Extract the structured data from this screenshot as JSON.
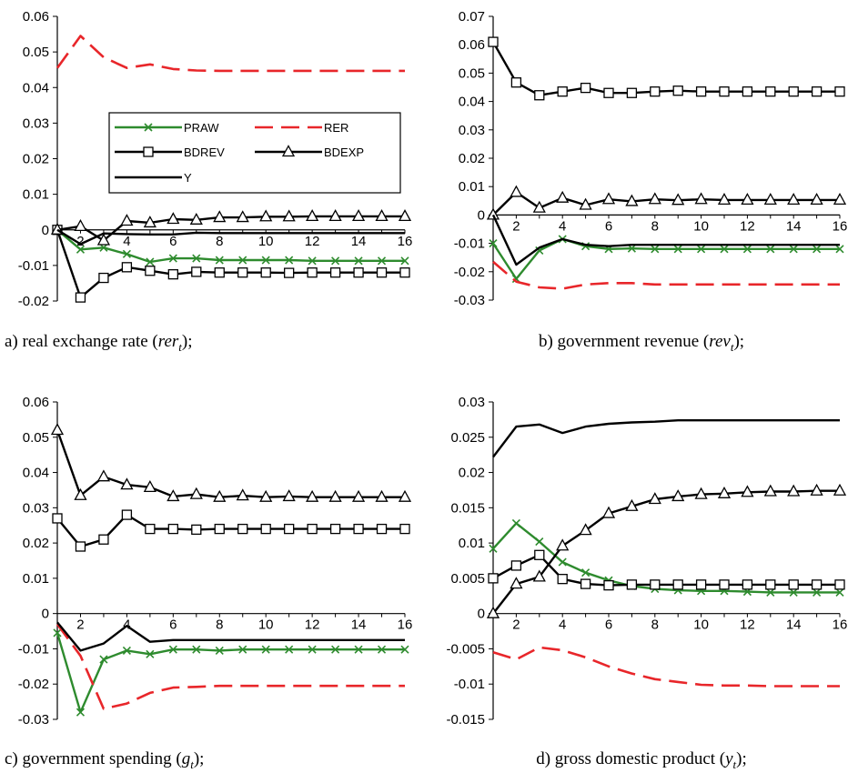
{
  "colors": {
    "PRAW": "#2e8b2e",
    "RER": "#e8262a",
    "BDREV": "#000000",
    "BDEXP": "#000000",
    "Y": "#000000"
  },
  "legend": {
    "items": [
      "PRAW",
      "RER",
      "BDREV",
      "BDEXP",
      "Y"
    ],
    "placement": "inside panel a, center-right"
  },
  "chart_data": [
    {
      "type": "line",
      "caption": {
        "pre": "a) real exchange rate (",
        "var": "rer",
        "sub": "t",
        "post": ");"
      },
      "x": [
        1,
        2,
        3,
        4,
        5,
        6,
        7,
        8,
        9,
        10,
        11,
        12,
        13,
        14,
        15,
        16
      ],
      "xticks": [
        2,
        4,
        6,
        8,
        10,
        12,
        14,
        16
      ],
      "ylim": [
        -0.02,
        0.06
      ],
      "yticks": [
        "-0.02",
        "-0.01",
        "0",
        "0.01",
        "0.02",
        "0.03",
        "0.04",
        "0.05",
        "0.06"
      ],
      "series": [
        {
          "name": "PRAW",
          "values": [
            0,
            -0.0055,
            -0.005,
            -0.0068,
            -0.009,
            -0.008,
            -0.008,
            -0.0085,
            -0.0085,
            -0.0085,
            -0.0085,
            -0.0087,
            -0.0087,
            -0.0087,
            -0.0087,
            -0.0087
          ]
        },
        {
          "name": "RER",
          "values": [
            0.0455,
            0.0545,
            0.0485,
            0.0455,
            0.0465,
            0.0452,
            0.0448,
            0.0447,
            0.0447,
            0.0447,
            0.0447,
            0.0447,
            0.0447,
            0.0447,
            0.0447,
            0.0447
          ]
        },
        {
          "name": "BDREV",
          "values": [
            0,
            -0.019,
            -0.0135,
            -0.0105,
            -0.0115,
            -0.0125,
            -0.0118,
            -0.012,
            -0.012,
            -0.012,
            -0.0121,
            -0.012,
            -0.012,
            -0.012,
            -0.012,
            -0.012
          ]
        },
        {
          "name": "BDEXP",
          "values": [
            0,
            0.001,
            -0.003,
            0.0025,
            0.002,
            0.003,
            0.0028,
            0.0035,
            0.0035,
            0.0037,
            0.0037,
            0.0038,
            0.0038,
            0.0038,
            0.0038,
            0.0038
          ]
        },
        {
          "name": "Y",
          "values": [
            0,
            -0.004,
            -0.001,
            -0.0012,
            -0.0013,
            -0.0013,
            -0.0008,
            -0.0009,
            -0.0009,
            -0.0009,
            -0.0009,
            -0.0009,
            -0.0009,
            -0.0009,
            -0.0009,
            -0.0009
          ]
        }
      ]
    },
    {
      "type": "line",
      "caption": {
        "pre": "b) government revenue (",
        "var": "rev",
        "sub": "t",
        "post": ");"
      },
      "x": [
        1,
        2,
        3,
        4,
        5,
        6,
        7,
        8,
        9,
        10,
        11,
        12,
        13,
        14,
        15,
        16
      ],
      "xticks": [
        2,
        4,
        6,
        8,
        10,
        12,
        14,
        16
      ],
      "ylim": [
        -0.03,
        0.07
      ],
      "yticks": [
        "-0.03",
        "-0.02",
        "-0.01",
        "0",
        "0.01",
        "0.02",
        "0.03",
        "0.04",
        "0.05",
        "0.06",
        "0.07"
      ],
      "series": [
        {
          "name": "PRAW",
          "values": [
            -0.01,
            -0.0225,
            -0.0125,
            -0.0085,
            -0.011,
            -0.012,
            -0.0118,
            -0.012,
            -0.012,
            -0.012,
            -0.012,
            -0.012,
            -0.012,
            -0.012,
            -0.012,
            -0.012
          ]
        },
        {
          "name": "RER",
          "values": [
            -0.0165,
            -0.0235,
            -0.0255,
            -0.026,
            -0.0245,
            -0.024,
            -0.024,
            -0.0245,
            -0.0245,
            -0.0245,
            -0.0245,
            -0.0245,
            -0.0245,
            -0.0245,
            -0.0245,
            -0.0245
          ]
        },
        {
          "name": "BDREV",
          "values": [
            0.061,
            0.0467,
            0.0422,
            0.0435,
            0.0448,
            0.043,
            0.043,
            0.0435,
            0.0438,
            0.0435,
            0.0435,
            0.0435,
            0.0435,
            0.0435,
            0.0435,
            0.0435
          ]
        },
        {
          "name": "BDEXP",
          "values": [
            0,
            0.008,
            0.0025,
            0.006,
            0.0035,
            0.0055,
            0.0048,
            0.0055,
            0.0052,
            0.0055,
            0.0053,
            0.0053,
            0.0053,
            0.0053,
            0.0053,
            0.0053
          ]
        },
        {
          "name": "Y",
          "values": [
            0,
            -0.0175,
            -0.0115,
            -0.0085,
            -0.0105,
            -0.011,
            -0.0105,
            -0.0105,
            -0.0105,
            -0.0105,
            -0.0105,
            -0.0105,
            -0.0105,
            -0.0105,
            -0.0105,
            -0.0105
          ]
        }
      ]
    },
    {
      "type": "line",
      "caption": {
        "pre": "c) government spending (",
        "var": "g",
        "sub": "t",
        "post": ");"
      },
      "x": [
        1,
        2,
        3,
        4,
        5,
        6,
        7,
        8,
        9,
        10,
        11,
        12,
        13,
        14,
        15,
        16
      ],
      "xticks": [
        2,
        4,
        6,
        8,
        10,
        12,
        14,
        16
      ],
      "ylim": [
        -0.03,
        0.06
      ],
      "yticks": [
        "-0.03",
        "-0.02",
        "-0.01",
        "0",
        "0.01",
        "0.02",
        "0.03",
        "0.04",
        "0.05",
        "0.06"
      ],
      "series": [
        {
          "name": "PRAW",
          "values": [
            -0.0055,
            -0.028,
            -0.013,
            -0.0105,
            -0.0115,
            -0.0102,
            -0.0102,
            -0.0105,
            -0.0102,
            -0.0102,
            -0.0102,
            -0.0102,
            -0.0102,
            -0.0102,
            -0.0102,
            -0.0102
          ]
        },
        {
          "name": "RER",
          "values": [
            -0.003,
            -0.012,
            -0.027,
            -0.0255,
            -0.0225,
            -0.021,
            -0.0208,
            -0.0205,
            -0.0205,
            -0.0205,
            -0.0205,
            -0.0205,
            -0.0205,
            -0.0205,
            -0.0205,
            -0.0205
          ]
        },
        {
          "name": "BDREV",
          "values": [
            0.027,
            0.019,
            0.021,
            0.028,
            0.024,
            0.024,
            0.0238,
            0.024,
            0.024,
            0.024,
            0.024,
            0.024,
            0.024,
            0.024,
            0.024,
            0.024
          ]
        },
        {
          "name": "BDEXP",
          "values": [
            0.052,
            0.0335,
            0.0388,
            0.0365,
            0.0358,
            0.0332,
            0.0338,
            0.033,
            0.0334,
            0.033,
            0.0332,
            0.033,
            0.033,
            0.033,
            0.033,
            0.033
          ]
        },
        {
          "name": "Y",
          "values": [
            -0.0025,
            -0.0105,
            -0.0085,
            -0.0035,
            -0.008,
            -0.0075,
            -0.0075,
            -0.0075,
            -0.0075,
            -0.0075,
            -0.0075,
            -0.0075,
            -0.0075,
            -0.0075,
            -0.0075,
            -0.0075
          ]
        }
      ]
    },
    {
      "type": "line",
      "caption": {
        "pre": "d) gross domestic product (",
        "var": "y",
        "sub": "t",
        "post": ");"
      },
      "x": [
        1,
        2,
        3,
        4,
        5,
        6,
        7,
        8,
        9,
        10,
        11,
        12,
        13,
        14,
        15,
        16
      ],
      "xticks": [
        2,
        4,
        6,
        8,
        10,
        12,
        14,
        16
      ],
      "ylim": [
        -0.015,
        0.03
      ],
      "yticks": [
        "-0.015",
        "-0.01",
        "-0.005",
        "0",
        "0.005",
        "0.01",
        "0.015",
        "0.02",
        "0.025",
        "0.03"
      ],
      "series": [
        {
          "name": "PRAW",
          "values": [
            0.0092,
            0.0128,
            0.0102,
            0.0073,
            0.0058,
            0.0047,
            0.0039,
            0.0035,
            0.0033,
            0.0032,
            0.0032,
            0.0031,
            0.003,
            0.003,
            0.003,
            0.003
          ]
        },
        {
          "name": "RER",
          "values": [
            -0.0055,
            -0.0065,
            -0.0048,
            -0.0052,
            -0.0062,
            -0.0075,
            -0.0085,
            -0.0093,
            -0.0097,
            -0.0101,
            -0.0102,
            -0.0102,
            -0.0103,
            -0.0103,
            -0.0103,
            -0.0103
          ]
        },
        {
          "name": "BDREV",
          "values": [
            0.005,
            0.0068,
            0.0083,
            0.0049,
            0.0042,
            0.004,
            0.0041,
            0.0041,
            0.0041,
            0.0041,
            0.0041,
            0.0041,
            0.0041,
            0.0041,
            0.0041,
            0.0041
          ]
        },
        {
          "name": "BDEXP",
          "values": [
            0,
            0.0042,
            0.0052,
            0.0096,
            0.0118,
            0.0142,
            0.0152,
            0.0162,
            0.0166,
            0.0169,
            0.017,
            0.0172,
            0.0173,
            0.0173,
            0.0174,
            0.0174
          ]
        },
        {
          "name": "Y",
          "values": [
            0.0222,
            0.0265,
            0.0268,
            0.0256,
            0.0265,
            0.0269,
            0.0271,
            0.0272,
            0.0274,
            0.0274,
            0.0274,
            0.0274,
            0.0274,
            0.0274,
            0.0274,
            0.0274
          ]
        }
      ]
    }
  ]
}
